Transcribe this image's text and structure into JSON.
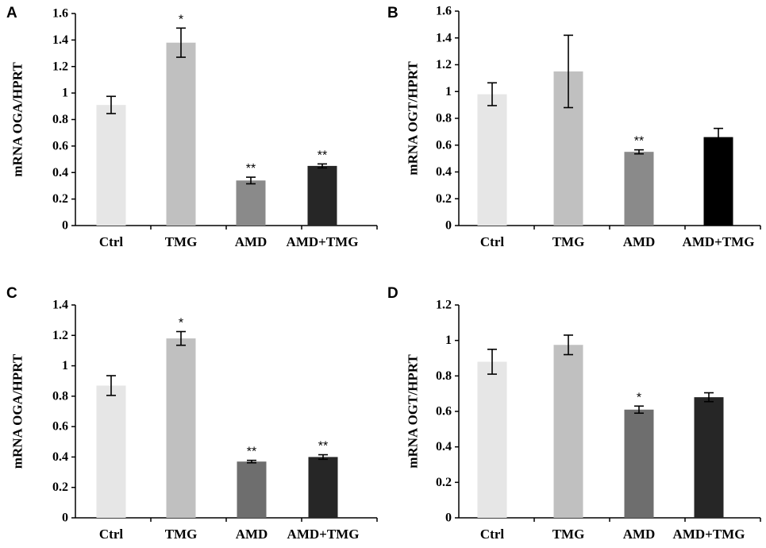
{
  "chart_data": [
    {
      "type": "bar",
      "panel": "A",
      "ylabel": "mRNA OGA/HPRT",
      "ylim": [
        0,
        1.6
      ],
      "yticks": [
        "0",
        "0.2",
        "0.4",
        "0.6",
        "0.8",
        "1",
        "1.2",
        "1.4",
        "1.6"
      ],
      "ytick_values": [
        0,
        0.2,
        0.4,
        0.6,
        0.8,
        1,
        1.2,
        1.4,
        1.6
      ],
      "categories": [
        "Ctrl",
        "TMG",
        "AMD",
        "AMD+TMG"
      ],
      "values": [
        0.91,
        1.38,
        0.34,
        0.45
      ],
      "errors": [
        0.065,
        0.11,
        0.025,
        0.015
      ],
      "significance": [
        "",
        "*",
        "**",
        "**"
      ],
      "colors": [
        "#e6e6e6",
        "#c0c0c0",
        "#8a8a8a",
        "#262626"
      ]
    },
    {
      "type": "bar",
      "panel": "B",
      "ylabel": "mRNA OGT/HPRT",
      "ylim": [
        0,
        1.6
      ],
      "yticks": [
        "0",
        "0.2",
        "0.4",
        "0.6",
        "0.8",
        "1",
        "1.2",
        "1.4",
        "1.6"
      ],
      "ytick_values": [
        0,
        0.2,
        0.4,
        0.6,
        0.8,
        1,
        1.2,
        1.4,
        1.6
      ],
      "categories": [
        "Ctrl",
        "TMG",
        "AMD",
        "AMD+TMG"
      ],
      "values": [
        0.98,
        1.15,
        0.55,
        0.66
      ],
      "errors": [
        0.085,
        0.27,
        0.015,
        0.065
      ],
      "significance": [
        "",
        "",
        "**",
        ""
      ],
      "colors": [
        "#e6e6e6",
        "#c0c0c0",
        "#8a8a8a",
        "#000000"
      ]
    },
    {
      "type": "bar",
      "panel": "C",
      "ylabel": "mRNA OGA/HPRT",
      "ylim": [
        0,
        1.4
      ],
      "yticks": [
        "0",
        "0.2",
        "0.4",
        "0.6",
        "0.8",
        "1",
        "1.2",
        "1.4"
      ],
      "ytick_values": [
        0,
        0.2,
        0.4,
        0.6,
        0.8,
        1,
        1.2,
        1.4
      ],
      "categories": [
        "Ctrl",
        "TMG",
        "AMD",
        "AMD+TMG"
      ],
      "values": [
        0.87,
        1.18,
        0.37,
        0.4
      ],
      "errors": [
        0.065,
        0.045,
        0.008,
        0.015
      ],
      "significance": [
        "",
        "*",
        "**",
        "**"
      ],
      "colors": [
        "#e6e6e6",
        "#c0c0c0",
        "#6e6e6e",
        "#262626"
      ]
    },
    {
      "type": "bar",
      "panel": "D",
      "ylabel": "mRNA OGT/HPRT",
      "ylim": [
        0,
        1.2
      ],
      "yticks": [
        "0",
        "0.2",
        "0.4",
        "0.6",
        "0.8",
        "1",
        "1.2"
      ],
      "ytick_values": [
        0,
        0.2,
        0.4,
        0.6,
        0.8,
        1,
        1.2
      ],
      "categories": [
        "Ctrl",
        "TMG",
        "AMD",
        "AMD+TMG"
      ],
      "values": [
        0.88,
        0.975,
        0.61,
        0.68
      ],
      "errors": [
        0.07,
        0.055,
        0.02,
        0.025
      ],
      "significance": [
        "",
        "",
        "*",
        ""
      ],
      "colors": [
        "#e6e6e6",
        "#c0c0c0",
        "#6e6e6e",
        "#262626"
      ]
    }
  ]
}
